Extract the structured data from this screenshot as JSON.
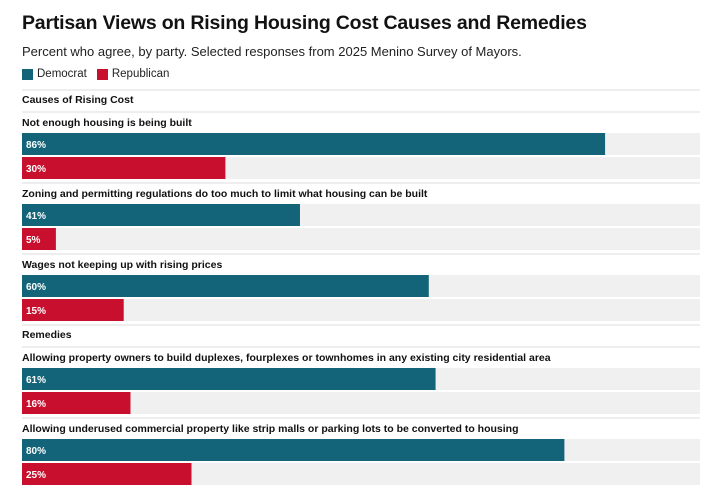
{
  "title": "Partisan Views on Rising Housing Cost Causes and Remedies",
  "subtitle": "Percent who agree, by party. Selected responses from 2025 Menino Survey of Mayors.",
  "legend": [
    {
      "name": "Democrat",
      "color": "#136478"
    },
    {
      "name": "Republican",
      "color": "#c8102e"
    }
  ],
  "chart_data": {
    "type": "bar",
    "orientation": "horizontal",
    "xlim": [
      0,
      100
    ],
    "unit": "%",
    "series": [
      {
        "name": "Democrat",
        "color": "#136478"
      },
      {
        "name": "Republican",
        "color": "#c8102e"
      }
    ],
    "groups": [
      {
        "section": "Causes of Rising Cost",
        "items": [
          {
            "label": "Not enough housing is being built",
            "values": [
              86,
              30
            ]
          },
          {
            "label": "Zoning and permitting regulations do too much to limit what housing can be built",
            "values": [
              41,
              5
            ]
          },
          {
            "label": "Wages not keeping up with rising prices",
            "values": [
              60,
              15
            ]
          }
        ]
      },
      {
        "section": "Remedies",
        "items": [
          {
            "label": "Allowing property owners to build duplexes, fourplexes or townhomes in any existing city residential area",
            "values": [
              61,
              16
            ]
          },
          {
            "label": "Allowing underused commercial property like strip malls or parking lots to be converted to housing",
            "values": [
              80,
              25
            ]
          }
        ]
      }
    ],
    "background_track_color": "#f0f0f0",
    "divider_color": "#dcdcdc"
  }
}
